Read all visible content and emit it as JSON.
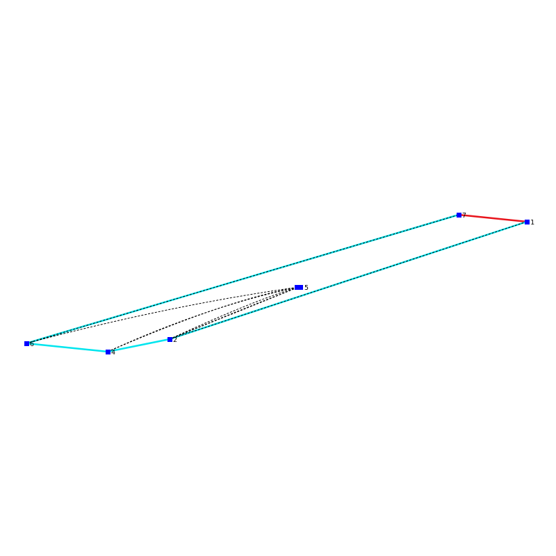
{
  "nodes": [
    {
      "label": "1"
    },
    {
      "label": "7"
    },
    {
      "label": "5"
    },
    {
      "label": "2"
    },
    {
      "label": "4"
    },
    {
      "label": "6"
    }
  ]
}
